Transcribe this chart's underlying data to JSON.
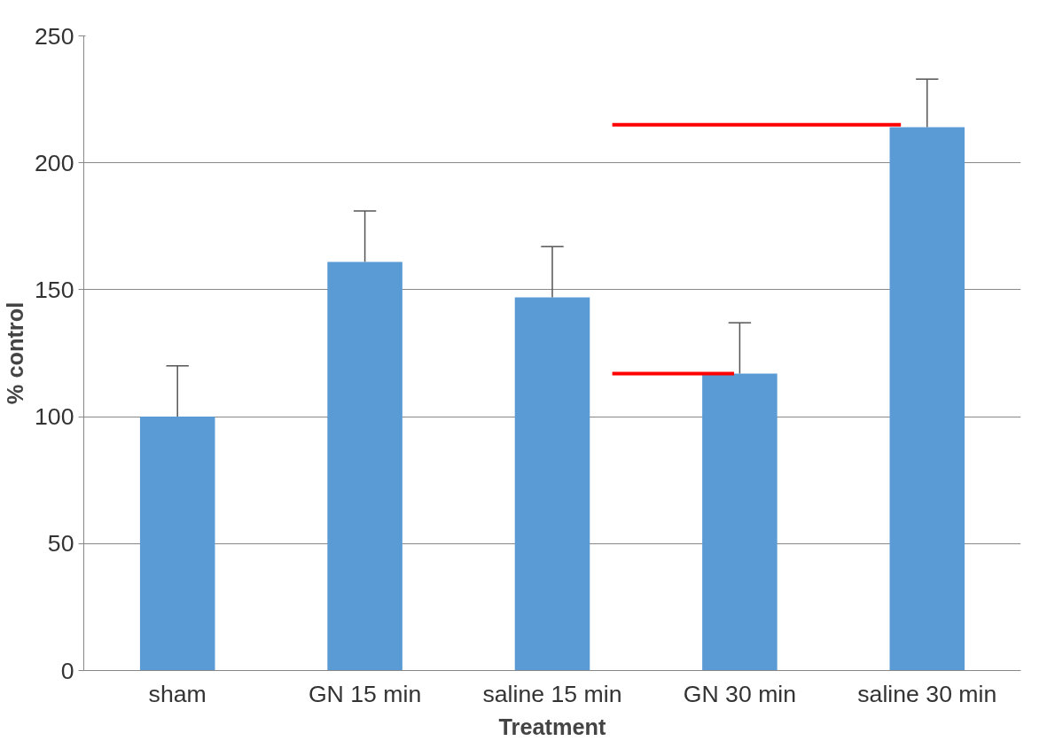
{
  "chart_data": {
    "type": "bar",
    "xlabel": "Treatment",
    "ylabel": "% control",
    "categories": [
      "sham",
      "GN 15 min",
      "saline 15 min",
      "GN 30 min",
      "saline 30 min"
    ],
    "values": [
      100,
      161,
      147,
      117,
      214
    ],
    "errors": [
      [
        100,
        120
      ],
      [
        161,
        181
      ],
      [
        147,
        167
      ],
      [
        117,
        137
      ],
      [
        214,
        233
      ]
    ],
    "color": "#5b9bd5",
    "ylim": [
      0,
      250
    ],
    "yticks": [
      0,
      50,
      100,
      150,
      200,
      250
    ],
    "grid": "y",
    "ref_lines": [
      {
        "axis": "y",
        "value": 215,
        "color": "#ff0000"
      },
      {
        "axis": "y",
        "value": 117,
        "color": "#ff0000"
      }
    ]
  }
}
